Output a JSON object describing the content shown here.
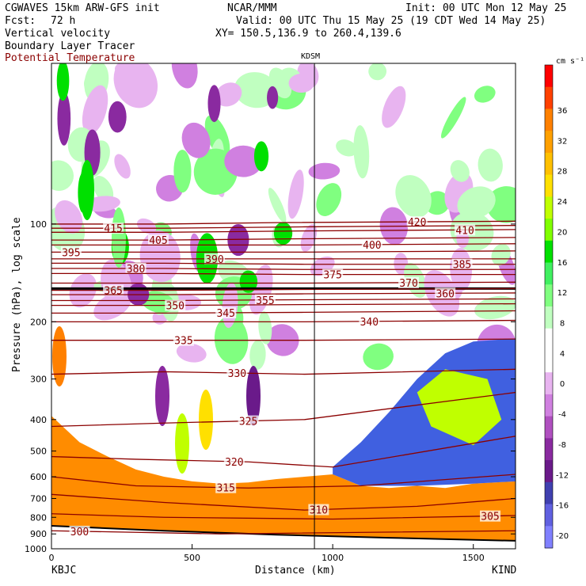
{
  "header": {
    "model": "CGWAVES 15km ARW-GFS init",
    "fcst_label": "Fcst:",
    "fcst_value": "72 h",
    "org": "NCAR/MMM",
    "init": "Init: 00 UTC Mon 12 May 25",
    "valid": "Valid: 00 UTC Thu 15 May 25 (19 CDT Wed 14 May 25)",
    "xy": "XY= 150.5,136.9 to 260.4,139.6",
    "field1": "Vertical velocity",
    "field2": "Boundary Layer Tracer",
    "field3": "Potential Temperature",
    "field3_color": "#8b0000"
  },
  "chart_data": {
    "type": "cross-section",
    "xlabel": "Distance (km)",
    "ylabel": "Pressure (hPa), log scale",
    "xlim": [
      0,
      1650
    ],
    "ylim": [
      1000,
      32
    ],
    "x_ticks": [
      0,
      500,
      1000,
      1500
    ],
    "y_ticks": [
      100,
      200,
      300,
      400,
      500,
      600,
      700,
      800,
      900,
      1000
    ],
    "left_station": "KBJC",
    "right_station": "KIND",
    "marker_station": "KDSM",
    "marker_x": 935,
    "colorbar": {
      "unit": "cm s⁻¹",
      "tick_labels": [
        36,
        32,
        28,
        24,
        20,
        16,
        12,
        8,
        4,
        0,
        -4,
        -8,
        -12,
        -16,
        -20
      ],
      "colors": [
        "#ff0000",
        "#ff4000",
        "#ff8000",
        "#ffa000",
        "#ffc000",
        "#ffe000",
        "#c0ff00",
        "#80ff00",
        "#00e000",
        "#40f060",
        "#80ff80",
        "#c0ffc0",
        "#ffffff",
        "#ffffff",
        "#e8b4f0",
        "#d080e0",
        "#b050c0",
        "#8a2aa0",
        "#6a1a8a",
        "#4040b0",
        "#6060e0",
        "#8080ff"
      ]
    },
    "theta_contours": [
      {
        "level": 420,
        "label_x": 1300,
        "points": [
          [
            0,
            100
          ],
          [
            400,
            100
          ],
          [
            800,
            99
          ],
          [
            1650,
            98
          ]
        ]
      },
      {
        "level": 415,
        "label_x": 220,
        "points": [
          [
            0,
            103
          ],
          [
            400,
            103
          ],
          [
            900,
            102
          ],
          [
            1650,
            101
          ]
        ]
      },
      {
        "level": 410,
        "label_x": 1470,
        "points": [
          [
            0,
            106
          ],
          [
            400,
            106
          ],
          [
            900,
            105
          ],
          [
            1650,
            104
          ]
        ]
      },
      {
        "level": 405,
        "label_x": 380,
        "points": [
          [
            0,
            112
          ],
          [
            400,
            112
          ],
          [
            900,
            111
          ],
          [
            1650,
            110
          ]
        ]
      },
      {
        "level": 400,
        "label_x": 1140,
        "points": [
          [
            0,
            116
          ],
          [
            400,
            116
          ],
          [
            900,
            116
          ],
          [
            1650,
            115
          ]
        ]
      },
      {
        "level": 395,
        "label_x": 70,
        "points": [
          [
            0,
            122
          ],
          [
            400,
            122
          ],
          [
            900,
            122
          ],
          [
            1650,
            121
          ]
        ]
      },
      {
        "level": 390,
        "label_x": 580,
        "points": [
          [
            0,
            128
          ],
          [
            400,
            128
          ],
          [
            900,
            128
          ],
          [
            1650,
            128
          ]
        ]
      },
      {
        "level": 385,
        "label_x": 1460,
        "points": [
          [
            0,
            132
          ],
          [
            400,
            132
          ],
          [
            900,
            133
          ],
          [
            1650,
            133
          ]
        ]
      },
      {
        "level": 380,
        "label_x": 300,
        "points": [
          [
            0,
            137
          ],
          [
            400,
            137
          ],
          [
            900,
            138
          ],
          [
            1650,
            138
          ]
        ]
      },
      {
        "level": 375,
        "label_x": 1000,
        "points": [
          [
            0,
            142
          ],
          [
            400,
            142
          ],
          [
            900,
            143
          ],
          [
            1650,
            143
          ]
        ]
      },
      {
        "level": 370,
        "label_x": 1270,
        "points": [
          [
            0,
            152
          ],
          [
            400,
            152
          ],
          [
            900,
            152
          ],
          [
            1650,
            151
          ]
        ]
      },
      {
        "level": 365,
        "label_x": 220,
        "points": [
          [
            0,
            160
          ],
          [
            400,
            160
          ],
          [
            900,
            159
          ],
          [
            1650,
            158
          ]
        ]
      },
      {
        "level": 360,
        "label_x": 1400,
        "points": [
          [
            0,
            165
          ],
          [
            400,
            165
          ],
          [
            900,
            164
          ],
          [
            1650,
            163
          ]
        ]
      },
      {
        "level": 355,
        "label_x": 760,
        "points": [
          [
            0,
            172
          ],
          [
            400,
            172
          ],
          [
            900,
            171
          ],
          [
            1650,
            170
          ]
        ]
      },
      {
        "level": 350,
        "label_x": 440,
        "points": [
          [
            0,
            178
          ],
          [
            400,
            178
          ],
          [
            900,
            177
          ],
          [
            1650,
            176
          ]
        ]
      },
      {
        "level": 345,
        "label_x": 620,
        "points": [
          [
            0,
            188
          ],
          [
            400,
            188
          ],
          [
            900,
            187
          ],
          [
            1650,
            185
          ]
        ]
      },
      {
        "level": 340,
        "label_x": 1130,
        "points": [
          [
            0,
            200
          ],
          [
            400,
            200
          ],
          [
            900,
            200
          ],
          [
            1650,
            198
          ]
        ]
      },
      {
        "level": 335,
        "label_x": 470,
        "points": [
          [
            0,
            228
          ],
          [
            400,
            228
          ],
          [
            900,
            228
          ],
          [
            1650,
            226
          ]
        ]
      },
      {
        "level": 330,
        "label_x": 660,
        "points": [
          [
            0,
            290
          ],
          [
            400,
            285
          ],
          [
            900,
            290
          ],
          [
            1650,
            280
          ]
        ]
      },
      {
        "level": 325,
        "label_x": 700,
        "points": [
          [
            0,
            420
          ],
          [
            400,
            410
          ],
          [
            900,
            400
          ],
          [
            1650,
            330
          ]
        ]
      },
      {
        "level": 320,
        "label_x": 650,
        "points": [
          [
            0,
            520
          ],
          [
            300,
            530
          ],
          [
            700,
            540
          ],
          [
            1000,
            560
          ],
          [
            1650,
            450
          ]
        ]
      },
      {
        "level": 315,
        "label_x": 620,
        "points": [
          [
            0,
            600
          ],
          [
            300,
            640
          ],
          [
            700,
            650
          ],
          [
            1100,
            640
          ],
          [
            1650,
            590
          ]
        ]
      },
      {
        "level": 310,
        "label_x": 950,
        "points": [
          [
            0,
            680
          ],
          [
            400,
            720
          ],
          [
            900,
            760
          ],
          [
            1300,
            740
          ],
          [
            1650,
            700
          ]
        ]
      },
      {
        "level": 305,
        "label_x": 1560,
        "points": [
          [
            0,
            780
          ],
          [
            400,
            800
          ],
          [
            1000,
            810
          ],
          [
            1650,
            790
          ]
        ]
      },
      {
        "level": 300,
        "label_x": 100,
        "points": [
          [
            0,
            880
          ],
          [
            600,
            900
          ],
          [
            1650,
            880
          ]
        ]
      }
    ]
  }
}
